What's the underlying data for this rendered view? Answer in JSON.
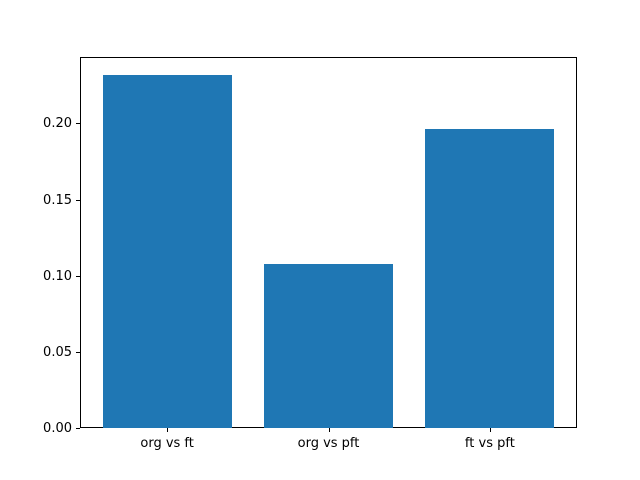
{
  "chart_data": {
    "type": "bar",
    "title": "",
    "xlabel": "",
    "ylabel": "",
    "categories": [
      "org vs ft",
      "org vs pft",
      "ft vs pft"
    ],
    "values": [
      0.232,
      0.108,
      0.196
    ],
    "yticks": [
      {
        "value": 0.0,
        "label": "0.00"
      },
      {
        "value": 0.05,
        "label": "0.05"
      },
      {
        "value": 0.1,
        "label": "0.10"
      },
      {
        "value": 0.15,
        "label": "0.15"
      },
      {
        "value": 0.2,
        "label": "0.20"
      }
    ],
    "ylim": [
      0,
      0.2436
    ],
    "xlim": [
      -0.54,
      2.54
    ],
    "bar_width_data_units": 0.8,
    "bar_color": "#1f77b4",
    "spine_color": "#000000",
    "background_color": "#ffffff",
    "grid": false,
    "legend": false
  }
}
